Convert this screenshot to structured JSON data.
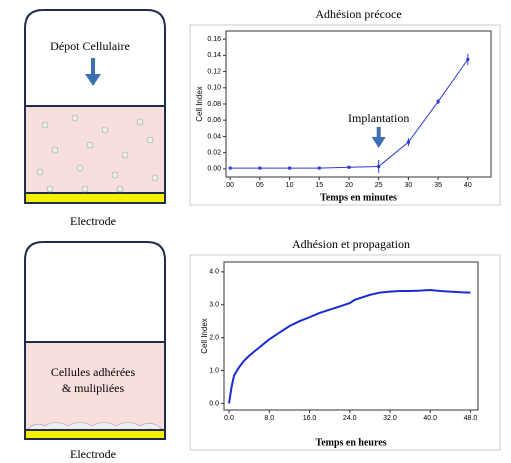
{
  "diagrams": [
    {
      "caption": "Dépot Cellulaire",
      "base": "Electrode"
    },
    {
      "caption_lines": [
        "Cellules adhérées",
        "& mulipliées"
      ],
      "base": "Electrode"
    }
  ],
  "chart_data": [
    {
      "type": "line",
      "title": "Adhésion précoce",
      "x_label": "Temps en minutes",
      "y_label": "Cell Index",
      "x": [
        0,
        5,
        10,
        15,
        20,
        25,
        30,
        35,
        40
      ],
      "values": [
        0.001,
        0.001,
        0.001,
        0.001,
        0.002,
        0.003,
        0.033,
        0.083,
        0.135
      ],
      "errors": [
        0.001,
        0.001,
        0.001,
        0.001,
        0.001,
        0.008,
        0.005,
        0.003,
        0.007
      ],
      "color": "#2a3ad0",
      "xlim": [
        -0.7,
        43.9
      ],
      "ylim": [
        -0.01,
        0.17
      ],
      "xticks": [
        {
          "value": 0,
          "label": "00"
        },
        {
          "value": 5,
          "label": "05"
        },
        10,
        15,
        20,
        25,
        30,
        35,
        40
      ],
      "yticks": [
        {
          "value": 0,
          "label": "0.00"
        },
        0.02,
        0.04,
        0.06,
        0.08,
        {
          "value": 0.1,
          "label": "0.10"
        },
        0.12,
        0.14,
        0.16
      ],
      "annotation": "Implantation",
      "annotation_x": 25
    },
    {
      "type": "line",
      "title": "Adhésion et propagation",
      "x_label": "Temps en  heures",
      "y_label": "Cell Index",
      "x": [
        0,
        0.5,
        1,
        2,
        3,
        4,
        6,
        8,
        10,
        12,
        14,
        16,
        18,
        20,
        22,
        24,
        25,
        26,
        28,
        30,
        32,
        34,
        36,
        38,
        40,
        42,
        44,
        46,
        48
      ],
      "values": [
        0.0,
        0.5,
        0.85,
        1.1,
        1.3,
        1.45,
        1.7,
        1.95,
        2.15,
        2.35,
        2.5,
        2.62,
        2.75,
        2.85,
        2.95,
        3.05,
        3.15,
        3.2,
        3.3,
        3.37,
        3.4,
        3.42,
        3.42,
        3.43,
        3.45,
        3.42,
        3.4,
        3.38,
        3.37
      ],
      "color": "#1a2bd0",
      "xlim": [
        -1,
        49.5
      ],
      "ylim": [
        -0.2,
        4.3
      ],
      "xticks": [
        {
          "value": 0,
          "label": "0.0"
        },
        {
          "value": 8,
          "label": "8.0"
        },
        {
          "value": 16,
          "label": "16.0"
        },
        {
          "value": 24,
          "label": "24.0"
        },
        {
          "value": 32,
          "label": "32.0"
        },
        {
          "value": 40,
          "label": "40.0"
        },
        {
          "value": 48,
          "label": "48.0"
        }
      ],
      "yticks": [
        {
          "value": 0,
          "label": "0.0"
        },
        {
          "value": 1,
          "label": "1.0"
        },
        {
          "value": 2,
          "label": "2.0"
        },
        {
          "value": 3,
          "label": "3.0"
        },
        {
          "value": 4,
          "label": "4.0"
        }
      ]
    }
  ]
}
